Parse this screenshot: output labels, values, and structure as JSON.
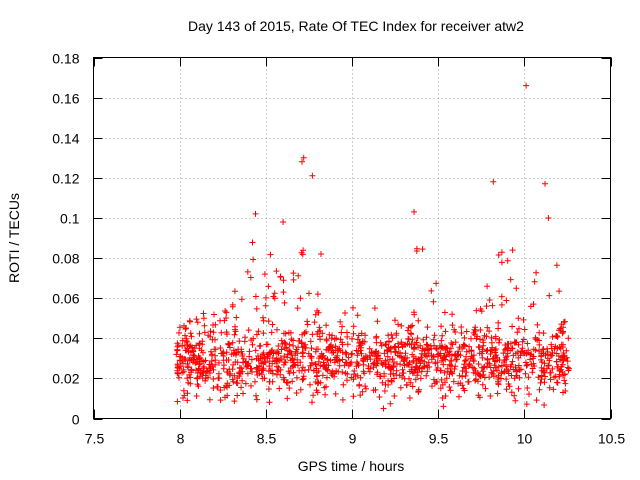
{
  "chart_data": {
    "type": "scatter",
    "title": "Day 143 of 2015, Rate Of TEC Index for receiver atw2",
    "xlabel": "GPS time / hours",
    "ylabel": "ROTI / TECUs",
    "xlim": [
      7.5,
      10.5
    ],
    "ylim": [
      0,
      0.18
    ],
    "xticks": [
      7.5,
      8,
      8.5,
      9,
      9.5,
      10,
      10.5
    ],
    "xtick_labels": [
      "7.5",
      "8",
      "8.5",
      "9",
      "9.5",
      "10",
      "10.5"
    ],
    "yticks": [
      0,
      0.02,
      0.04,
      0.06,
      0.08,
      0.1,
      0.12,
      0.14,
      0.16,
      0.18
    ],
    "ytick_labels": [
      "0",
      "0.02",
      "0.04",
      "0.06",
      "0.08",
      "0.1",
      "0.12",
      "0.14",
      "0.16",
      "0.18"
    ],
    "grid": true,
    "marker": "+",
    "color": "#ff0000",
    "x_range_of_data": [
      7.98,
      10.26
    ],
    "points_note": "approximate, reconstructed density of the plotted cloud",
    "point_count": 1400,
    "series": [
      {
        "name": "ROTI",
        "x": [],
        "y": []
      }
    ],
    "notable_points": {
      "x": [
        10.01,
        8.72,
        8.71,
        8.77,
        9.82,
        10.12,
        8.44,
        9.36,
        8.6,
        8.82
      ],
      "y": [
        0.166,
        0.13,
        0.128,
        0.121,
        0.118,
        0.117,
        0.102,
        0.103,
        0.098,
        0.082
      ]
    }
  }
}
